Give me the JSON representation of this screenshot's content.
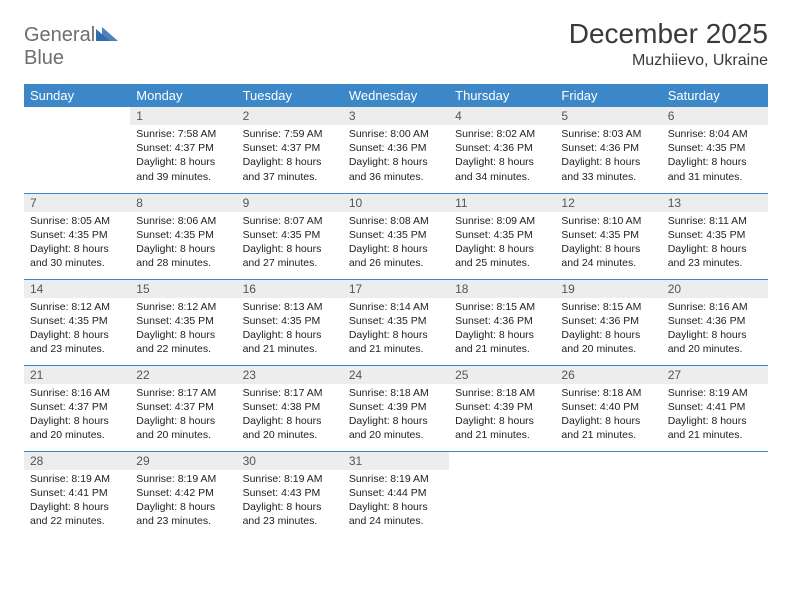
{
  "logo": {
    "line1": "General",
    "line2": "Blue"
  },
  "title": "December 2025",
  "location": "Muzhiievo, Ukraine",
  "colors": {
    "header_bg": "#3b87c8",
    "header_text": "#ffffff",
    "daynum_bg": "#ededed",
    "border": "#3b87c8",
    "logo_gray": "#6e6e6e",
    "logo_blue": "#2f6fb0"
  },
  "day_headers": [
    "Sunday",
    "Monday",
    "Tuesday",
    "Wednesday",
    "Thursday",
    "Friday",
    "Saturday"
  ],
  "weeks": [
    [
      {
        "n": "",
        "empty": true
      },
      {
        "n": "1",
        "sr": "Sunrise: 7:58 AM",
        "ss": "Sunset: 4:37 PM",
        "dl": "Daylight: 8 hours and 39 minutes."
      },
      {
        "n": "2",
        "sr": "Sunrise: 7:59 AM",
        "ss": "Sunset: 4:37 PM",
        "dl": "Daylight: 8 hours and 37 minutes."
      },
      {
        "n": "3",
        "sr": "Sunrise: 8:00 AM",
        "ss": "Sunset: 4:36 PM",
        "dl": "Daylight: 8 hours and 36 minutes."
      },
      {
        "n": "4",
        "sr": "Sunrise: 8:02 AM",
        "ss": "Sunset: 4:36 PM",
        "dl": "Daylight: 8 hours and 34 minutes."
      },
      {
        "n": "5",
        "sr": "Sunrise: 8:03 AM",
        "ss": "Sunset: 4:36 PM",
        "dl": "Daylight: 8 hours and 33 minutes."
      },
      {
        "n": "6",
        "sr": "Sunrise: 8:04 AM",
        "ss": "Sunset: 4:35 PM",
        "dl": "Daylight: 8 hours and 31 minutes."
      }
    ],
    [
      {
        "n": "7",
        "sr": "Sunrise: 8:05 AM",
        "ss": "Sunset: 4:35 PM",
        "dl": "Daylight: 8 hours and 30 minutes."
      },
      {
        "n": "8",
        "sr": "Sunrise: 8:06 AM",
        "ss": "Sunset: 4:35 PM",
        "dl": "Daylight: 8 hours and 28 minutes."
      },
      {
        "n": "9",
        "sr": "Sunrise: 8:07 AM",
        "ss": "Sunset: 4:35 PM",
        "dl": "Daylight: 8 hours and 27 minutes."
      },
      {
        "n": "10",
        "sr": "Sunrise: 8:08 AM",
        "ss": "Sunset: 4:35 PM",
        "dl": "Daylight: 8 hours and 26 minutes."
      },
      {
        "n": "11",
        "sr": "Sunrise: 8:09 AM",
        "ss": "Sunset: 4:35 PM",
        "dl": "Daylight: 8 hours and 25 minutes."
      },
      {
        "n": "12",
        "sr": "Sunrise: 8:10 AM",
        "ss": "Sunset: 4:35 PM",
        "dl": "Daylight: 8 hours and 24 minutes."
      },
      {
        "n": "13",
        "sr": "Sunrise: 8:11 AM",
        "ss": "Sunset: 4:35 PM",
        "dl": "Daylight: 8 hours and 23 minutes."
      }
    ],
    [
      {
        "n": "14",
        "sr": "Sunrise: 8:12 AM",
        "ss": "Sunset: 4:35 PM",
        "dl": "Daylight: 8 hours and 23 minutes."
      },
      {
        "n": "15",
        "sr": "Sunrise: 8:12 AM",
        "ss": "Sunset: 4:35 PM",
        "dl": "Daylight: 8 hours and 22 minutes."
      },
      {
        "n": "16",
        "sr": "Sunrise: 8:13 AM",
        "ss": "Sunset: 4:35 PM",
        "dl": "Daylight: 8 hours and 21 minutes."
      },
      {
        "n": "17",
        "sr": "Sunrise: 8:14 AM",
        "ss": "Sunset: 4:35 PM",
        "dl": "Daylight: 8 hours and 21 minutes."
      },
      {
        "n": "18",
        "sr": "Sunrise: 8:15 AM",
        "ss": "Sunset: 4:36 PM",
        "dl": "Daylight: 8 hours and 21 minutes."
      },
      {
        "n": "19",
        "sr": "Sunrise: 8:15 AM",
        "ss": "Sunset: 4:36 PM",
        "dl": "Daylight: 8 hours and 20 minutes."
      },
      {
        "n": "20",
        "sr": "Sunrise: 8:16 AM",
        "ss": "Sunset: 4:36 PM",
        "dl": "Daylight: 8 hours and 20 minutes."
      }
    ],
    [
      {
        "n": "21",
        "sr": "Sunrise: 8:16 AM",
        "ss": "Sunset: 4:37 PM",
        "dl": "Daylight: 8 hours and 20 minutes."
      },
      {
        "n": "22",
        "sr": "Sunrise: 8:17 AM",
        "ss": "Sunset: 4:37 PM",
        "dl": "Daylight: 8 hours and 20 minutes."
      },
      {
        "n": "23",
        "sr": "Sunrise: 8:17 AM",
        "ss": "Sunset: 4:38 PM",
        "dl": "Daylight: 8 hours and 20 minutes."
      },
      {
        "n": "24",
        "sr": "Sunrise: 8:18 AM",
        "ss": "Sunset: 4:39 PM",
        "dl": "Daylight: 8 hours and 20 minutes."
      },
      {
        "n": "25",
        "sr": "Sunrise: 8:18 AM",
        "ss": "Sunset: 4:39 PM",
        "dl": "Daylight: 8 hours and 21 minutes."
      },
      {
        "n": "26",
        "sr": "Sunrise: 8:18 AM",
        "ss": "Sunset: 4:40 PM",
        "dl": "Daylight: 8 hours and 21 minutes."
      },
      {
        "n": "27",
        "sr": "Sunrise: 8:19 AM",
        "ss": "Sunset: 4:41 PM",
        "dl": "Daylight: 8 hours and 21 minutes."
      }
    ],
    [
      {
        "n": "28",
        "sr": "Sunrise: 8:19 AM",
        "ss": "Sunset: 4:41 PM",
        "dl": "Daylight: 8 hours and 22 minutes."
      },
      {
        "n": "29",
        "sr": "Sunrise: 8:19 AM",
        "ss": "Sunset: 4:42 PM",
        "dl": "Daylight: 8 hours and 23 minutes."
      },
      {
        "n": "30",
        "sr": "Sunrise: 8:19 AM",
        "ss": "Sunset: 4:43 PM",
        "dl": "Daylight: 8 hours and 23 minutes."
      },
      {
        "n": "31",
        "sr": "Sunrise: 8:19 AM",
        "ss": "Sunset: 4:44 PM",
        "dl": "Daylight: 8 hours and 24 minutes."
      },
      {
        "n": "",
        "empty": true
      },
      {
        "n": "",
        "empty": true
      },
      {
        "n": "",
        "empty": true
      }
    ]
  ]
}
